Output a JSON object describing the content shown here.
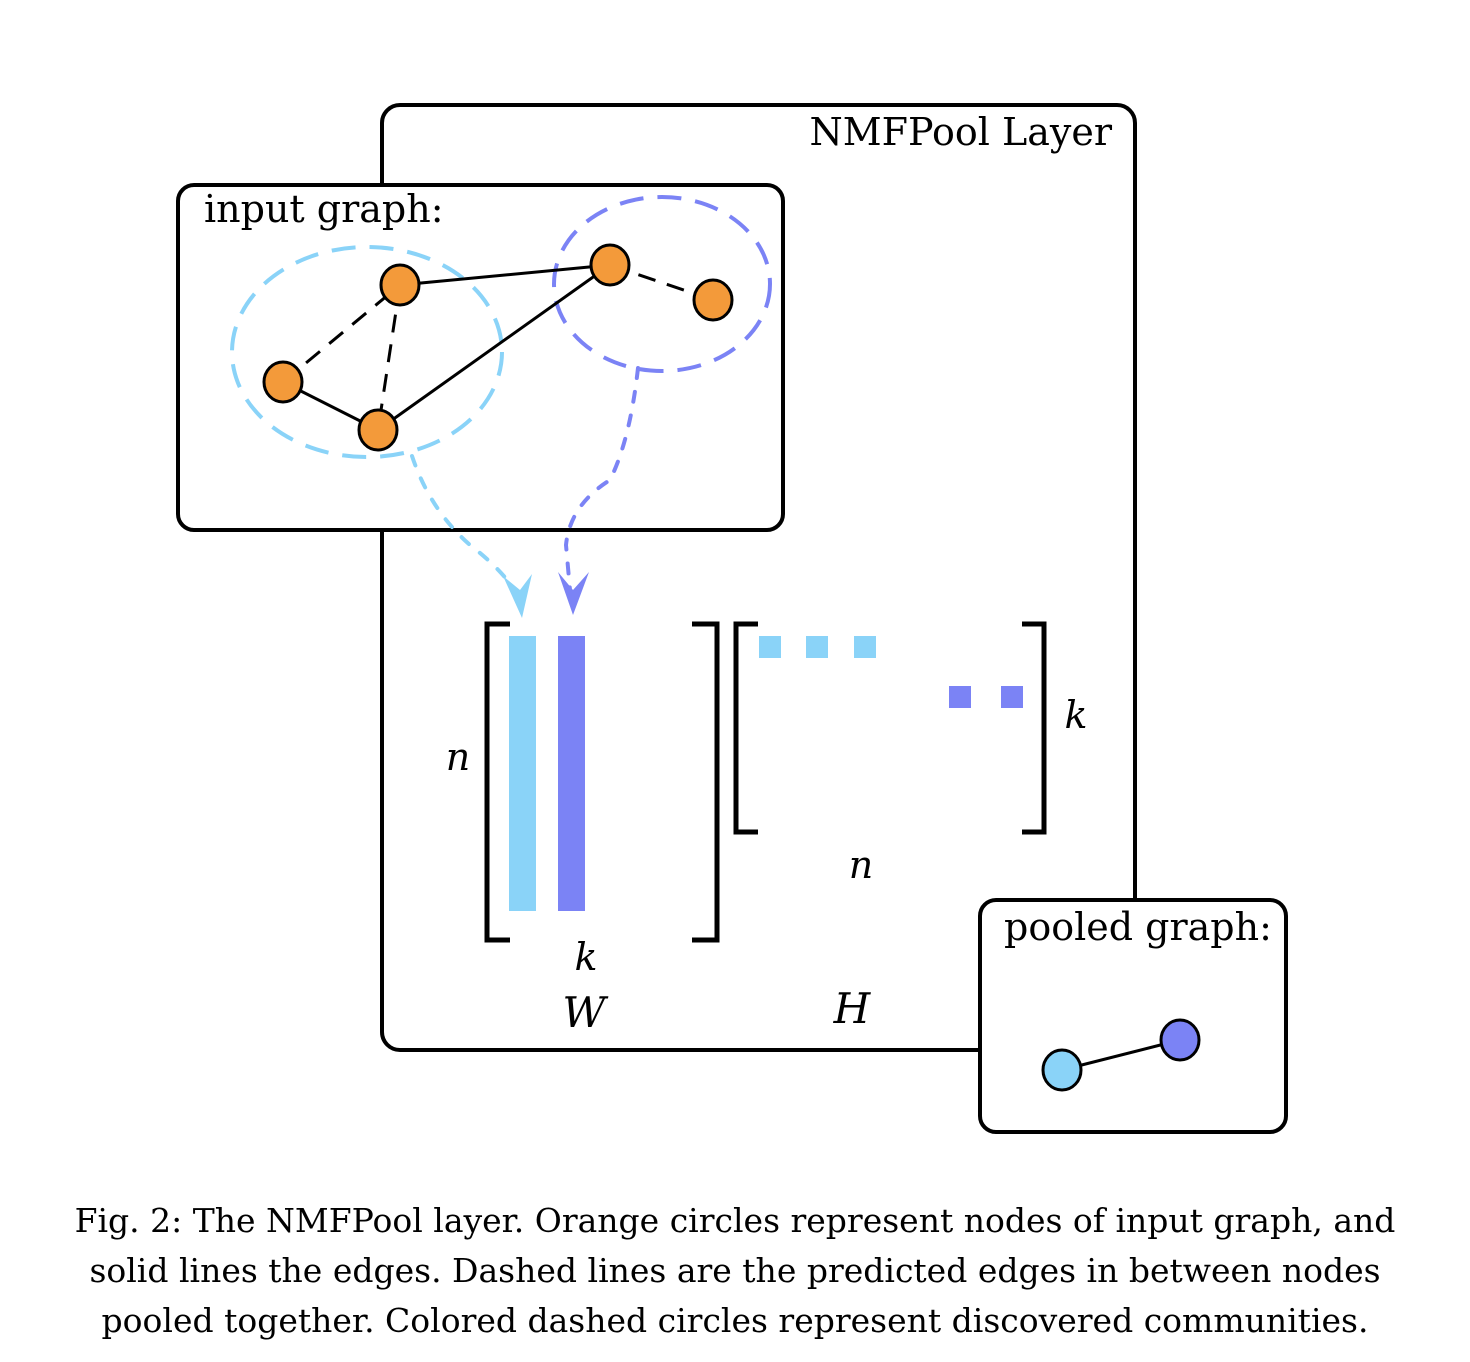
{
  "layer": {
    "title": "NMFPool Layer"
  },
  "input_graph": {
    "label": "input graph:"
  },
  "pooled_graph": {
    "label": "pooled graph:"
  },
  "matrices": {
    "W": {
      "symbol": "W",
      "rows_label": "n",
      "cols_label": "k"
    },
    "H": {
      "symbol": "H",
      "rows_label": "k",
      "cols_label": "n"
    }
  },
  "colors": {
    "node": "#F39A3A",
    "community_light": "#8AD3F8",
    "community_dark": "#7B83F5",
    "stroke": "#000000"
  },
  "caption": {
    "lines": [
      "Fig. 2: The NMFPool layer. Orange circles represent nodes of input graph, and",
      "solid lines the edges. Dashed lines are the predicted edges in between nodes",
      "pooled together. Colored dashed circles represent discovered communities."
    ]
  }
}
